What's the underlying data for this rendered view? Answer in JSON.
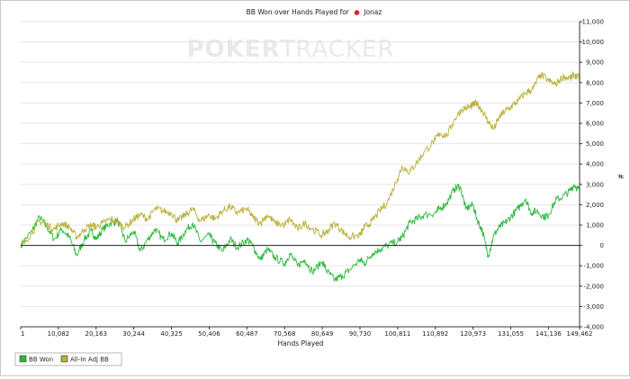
{
  "chart_data": {
    "type": "line",
    "title_prefix": "BB Won over Hands Played for",
    "title_player": "Jonaz",
    "player_icon": "poker-chip-icon",
    "watermark_left": "PO",
    "watermark_mid": "KER",
    "watermark_right": "TRACKER",
    "xlabel": "Hands Played",
    "ylabel": "#",
    "xlim": [
      1,
      149462
    ],
    "ylim": [
      -4000,
      11000
    ],
    "x_ticks": [
      1,
      10082,
      20163,
      30244,
      40325,
      50406,
      60487,
      70568,
      80649,
      90730,
      100811,
      110892,
      120973,
      131055,
      141136,
      149462
    ],
    "x_tick_labels": [
      "1",
      "10,082",
      "20,163",
      "30,244",
      "40,325",
      "50,406",
      "60,487",
      "70,568",
      "80,649",
      "90,730",
      "100,811",
      "110,892",
      "120,973",
      "131,055",
      "141,136",
      "149,462"
    ],
    "y_ticks": [
      -4000,
      -3000,
      -2000,
      -1000,
      0,
      1000,
      2000,
      3000,
      4000,
      5000,
      6000,
      7000,
      8000,
      9000,
      10000,
      11000
    ],
    "y_tick_labels": [
      "-4,000",
      "-3,000",
      "-2,000",
      "-1,000",
      "0",
      "1,000",
      "2,000",
      "3,000",
      "4,000",
      "5,000",
      "6,000",
      "7,000",
      "8,000",
      "9,000",
      "10,000",
      "11,000"
    ],
    "grid": true,
    "legend_position": "bottom-left",
    "series": [
      {
        "name": "BB Won",
        "color": "#2db83d",
        "points": [
          [
            1,
            0
          ],
          [
            3000,
            700
          ],
          [
            5000,
            1400
          ],
          [
            7000,
            900
          ],
          [
            9000,
            300
          ],
          [
            11000,
            800
          ],
          [
            13000,
            400
          ],
          [
            15000,
            -500
          ],
          [
            17000,
            300
          ],
          [
            19000,
            700
          ],
          [
            20163,
            300
          ],
          [
            22000,
            800
          ],
          [
            24000,
            1100
          ],
          [
            26000,
            1200
          ],
          [
            28000,
            200
          ],
          [
            30244,
            700
          ],
          [
            32000,
            -300
          ],
          [
            34000,
            300
          ],
          [
            36000,
            800
          ],
          [
            38000,
            300
          ],
          [
            40325,
            600
          ],
          [
            42000,
            100
          ],
          [
            44000,
            700
          ],
          [
            46000,
            1100
          ],
          [
            48000,
            200
          ],
          [
            50406,
            500
          ],
          [
            52000,
            100
          ],
          [
            54000,
            -300
          ],
          [
            56000,
            300
          ],
          [
            58000,
            -100
          ],
          [
            60487,
            300
          ],
          [
            62000,
            0
          ],
          [
            64000,
            -700
          ],
          [
            66000,
            -200
          ],
          [
            68000,
            -600
          ],
          [
            70568,
            -900
          ],
          [
            72000,
            -400
          ],
          [
            74000,
            -1000
          ],
          [
            76000,
            -700
          ],
          [
            78000,
            -1300
          ],
          [
            80649,
            -800
          ],
          [
            82000,
            -1300
          ],
          [
            84000,
            -1700
          ],
          [
            86000,
            -1500
          ],
          [
            88000,
            -1200
          ],
          [
            90730,
            -700
          ],
          [
            92000,
            -900
          ],
          [
            94000,
            -400
          ],
          [
            96000,
            -200
          ],
          [
            98000,
            0
          ],
          [
            100811,
            200
          ],
          [
            102000,
            400
          ],
          [
            104000,
            1100
          ],
          [
            106000,
            1300
          ],
          [
            108000,
            1500
          ],
          [
            110892,
            1600
          ],
          [
            112000,
            1800
          ],
          [
            114000,
            2100
          ],
          [
            116000,
            2800
          ],
          [
            117500,
            2900
          ],
          [
            119000,
            1800
          ],
          [
            120973,
            2000
          ],
          [
            122000,
            1300
          ],
          [
            123500,
            700
          ],
          [
            125000,
            -500
          ],
          [
            126500,
            500
          ],
          [
            128000,
            900
          ],
          [
            129500,
            1100
          ],
          [
            131055,
            1400
          ],
          [
            133000,
            1800
          ],
          [
            135000,
            2300
          ],
          [
            136500,
            1600
          ],
          [
            138000,
            1700
          ],
          [
            140000,
            1400
          ],
          [
            141136,
            1500
          ],
          [
            143000,
            2200
          ],
          [
            145000,
            2400
          ],
          [
            147000,
            2700
          ],
          [
            148000,
            3000
          ],
          [
            149462,
            2700
          ]
        ]
      },
      {
        "name": "All-In Adj BB",
        "color": "#b9b03a",
        "points": [
          [
            1,
            0
          ],
          [
            3000,
            600
          ],
          [
            5000,
            1200
          ],
          [
            7000,
            1000
          ],
          [
            9000,
            800
          ],
          [
            11000,
            1100
          ],
          [
            13000,
            900
          ],
          [
            15000,
            400
          ],
          [
            17000,
            800
          ],
          [
            19000,
            1000
          ],
          [
            20163,
            900
          ],
          [
            22000,
            1100
          ],
          [
            24000,
            1300
          ],
          [
            26000,
            1100
          ],
          [
            28000,
            900
          ],
          [
            30244,
            1300
          ],
          [
            32000,
            1500
          ],
          [
            34000,
            1300
          ],
          [
            36000,
            1800
          ],
          [
            38000,
            1700
          ],
          [
            40325,
            1600
          ],
          [
            42000,
            1200
          ],
          [
            44000,
            1500
          ],
          [
            46000,
            1800
          ],
          [
            48000,
            1200
          ],
          [
            50406,
            1500
          ],
          [
            52000,
            1300
          ],
          [
            54000,
            1700
          ],
          [
            56000,
            1900
          ],
          [
            58000,
            1600
          ],
          [
            60487,
            1800
          ],
          [
            62000,
            1400
          ],
          [
            64000,
            1100
          ],
          [
            66000,
            1500
          ],
          [
            68000,
            1100
          ],
          [
            70568,
            1000
          ],
          [
            72000,
            1300
          ],
          [
            74000,
            800
          ],
          [
            76000,
            1100
          ],
          [
            78000,
            800
          ],
          [
            80649,
            500
          ],
          [
            82000,
            700
          ],
          [
            84000,
            1100
          ],
          [
            86000,
            700
          ],
          [
            88000,
            400
          ],
          [
            90730,
            500
          ],
          [
            92000,
            900
          ],
          [
            94000,
            1200
          ],
          [
            96000,
            1700
          ],
          [
            98000,
            2100
          ],
          [
            100811,
            3300
          ],
          [
            102000,
            3900
          ],
          [
            104000,
            3600
          ],
          [
            106000,
            4100
          ],
          [
            108000,
            4600
          ],
          [
            110892,
            5200
          ],
          [
            112000,
            5500
          ],
          [
            114000,
            5400
          ],
          [
            116000,
            6200
          ],
          [
            118000,
            6700
          ],
          [
            120000,
            6800
          ],
          [
            120973,
            6900
          ],
          [
            122000,
            7000
          ],
          [
            123500,
            6600
          ],
          [
            125000,
            6100
          ],
          [
            126500,
            5700
          ],
          [
            128000,
            6300
          ],
          [
            129500,
            6600
          ],
          [
            131055,
            6800
          ],
          [
            133000,
            7100
          ],
          [
            135000,
            7500
          ],
          [
            137000,
            7700
          ],
          [
            139000,
            8400
          ],
          [
            141136,
            8100
          ],
          [
            143000,
            7900
          ],
          [
            145000,
            8300
          ],
          [
            147000,
            8200
          ],
          [
            148000,
            8400
          ],
          [
            149462,
            8200
          ]
        ]
      }
    ]
  }
}
